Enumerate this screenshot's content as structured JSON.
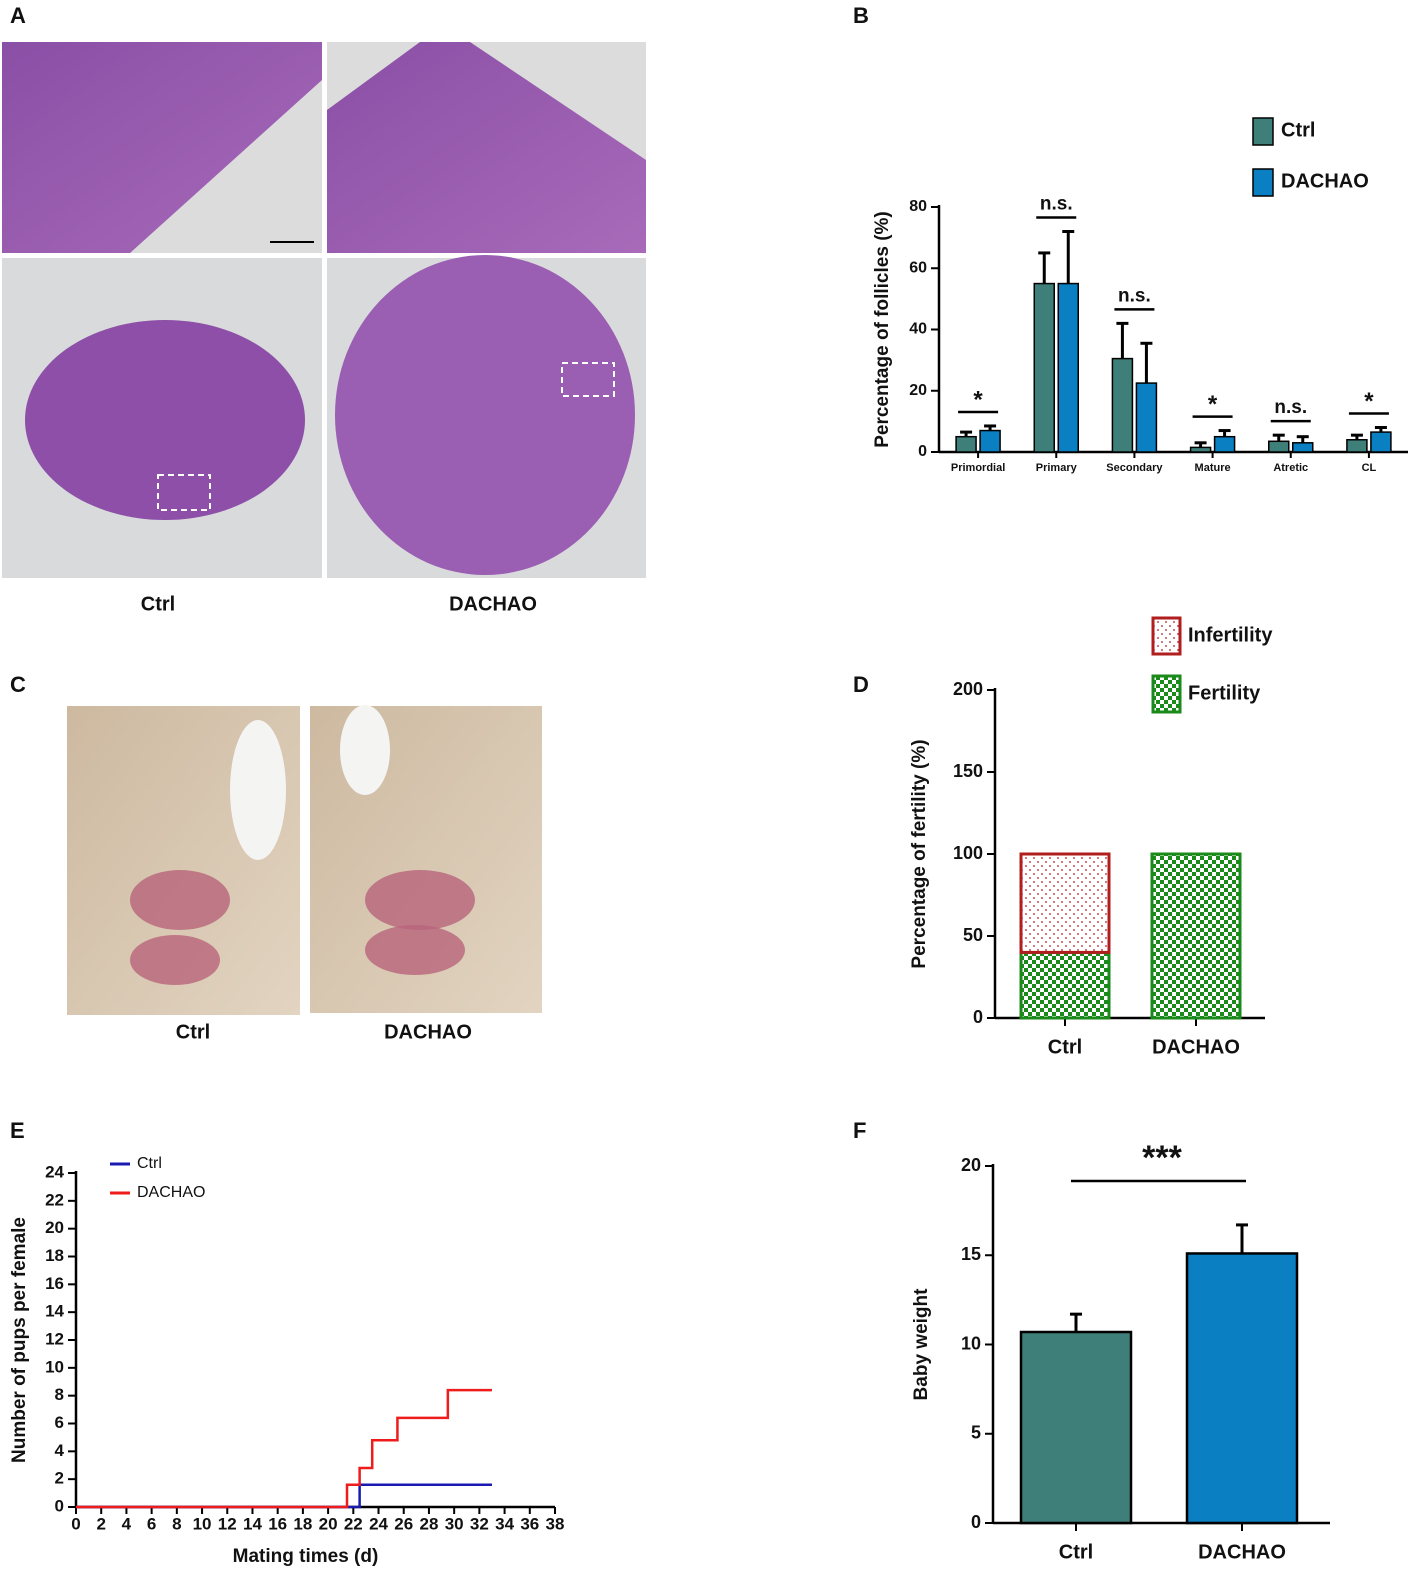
{
  "panels": {
    "A": {
      "label": "A",
      "captions": [
        "Ctrl",
        "DACHAO"
      ]
    },
    "C": {
      "label": "C",
      "captions": [
        "Ctrl",
        "DACHAO"
      ]
    }
  },
  "chart_data": [
    {
      "type": "grouped_bar",
      "label": "B",
      "ylabel": "Percentage of follicles (%)",
      "categories": [
        "Primordial",
        "Primary",
        "Secondary",
        "Mature",
        "Atretic",
        "CL"
      ],
      "series": [
        {
          "name": "Ctrl",
          "color": "#3e7f79",
          "values": [
            5,
            55,
            30.5,
            1.5,
            3.5,
            4
          ],
          "errors": [
            1.5,
            10,
            11.5,
            1.5,
            2,
            1.5
          ]
        },
        {
          "name": "DACHAO",
          "color": "#0a7fc2",
          "values": [
            7,
            55,
            22.5,
            5,
            3,
            6.5
          ],
          "errors": [
            1.5,
            17,
            13,
            2,
            2,
            1.5
          ]
        }
      ],
      "annotations": [
        "*",
        "n.s.",
        "n.s.",
        "*",
        "n.s.",
        "*"
      ],
      "ylim": [
        0,
        80
      ],
      "yticks": [
        0,
        20,
        40,
        60,
        80
      ],
      "legend": "top-right"
    },
    {
      "type": "stacked_bar",
      "label": "D",
      "ylabel": "Percentage of fertility (%)",
      "categories": [
        "Ctrl",
        "DACHAO"
      ],
      "series": [
        {
          "name": "Infertility",
          "color": "#b01e1e",
          "pattern": "dots",
          "values": [
            60,
            0
          ]
        },
        {
          "name": "Fertility",
          "color": "#1a8a1a",
          "pattern": "checker",
          "values": [
            40,
            100
          ]
        }
      ],
      "ylim": [
        0,
        200
      ],
      "yticks": [
        0,
        50,
        100,
        150,
        200
      ],
      "legend": "top-right"
    },
    {
      "type": "step_line",
      "label": "E",
      "xlabel": "Mating times (d)",
      "ylabel": "Number of pups per female",
      "series": [
        {
          "name": "Ctrl",
          "color": "#1a1ab0",
          "x": [
            0,
            22.5,
            22.5,
            33
          ],
          "values": [
            0,
            0,
            1.6,
            1.6
          ]
        },
        {
          "name": "DACHAO",
          "color": "#ee1c1c",
          "x": [
            0,
            21.5,
            21.5,
            22.5,
            22.5,
            23.5,
            23.5,
            25.5,
            25.5,
            29.5,
            29.5,
            33
          ],
          "values": [
            0,
            0,
            1.6,
            1.6,
            2.8,
            2.8,
            4.8,
            4.8,
            6.4,
            6.4,
            8.4,
            8.4
          ]
        }
      ],
      "xlim": [
        0,
        38
      ],
      "xticks": [
        0,
        2,
        4,
        6,
        8,
        10,
        12,
        14,
        16,
        18,
        20,
        22,
        24,
        26,
        28,
        30,
        32,
        34,
        36,
        38
      ],
      "ylim": [
        0,
        24
      ],
      "yticks": [
        0,
        2,
        4,
        6,
        8,
        10,
        12,
        14,
        16,
        18,
        20,
        22,
        24
      ],
      "legend": "top-left"
    },
    {
      "type": "bar",
      "label": "F",
      "ylabel": "Baby weight",
      "categories": [
        "Ctrl",
        "DACHAO"
      ],
      "values": [
        10.7,
        15.1
      ],
      "errors": [
        1.0,
        1.6
      ],
      "colors": [
        "#3e7f79",
        "#0a7fc2"
      ],
      "annotation": "***",
      "ylim": [
        0,
        20
      ],
      "yticks": [
        0,
        5,
        10,
        15,
        20
      ]
    }
  ]
}
